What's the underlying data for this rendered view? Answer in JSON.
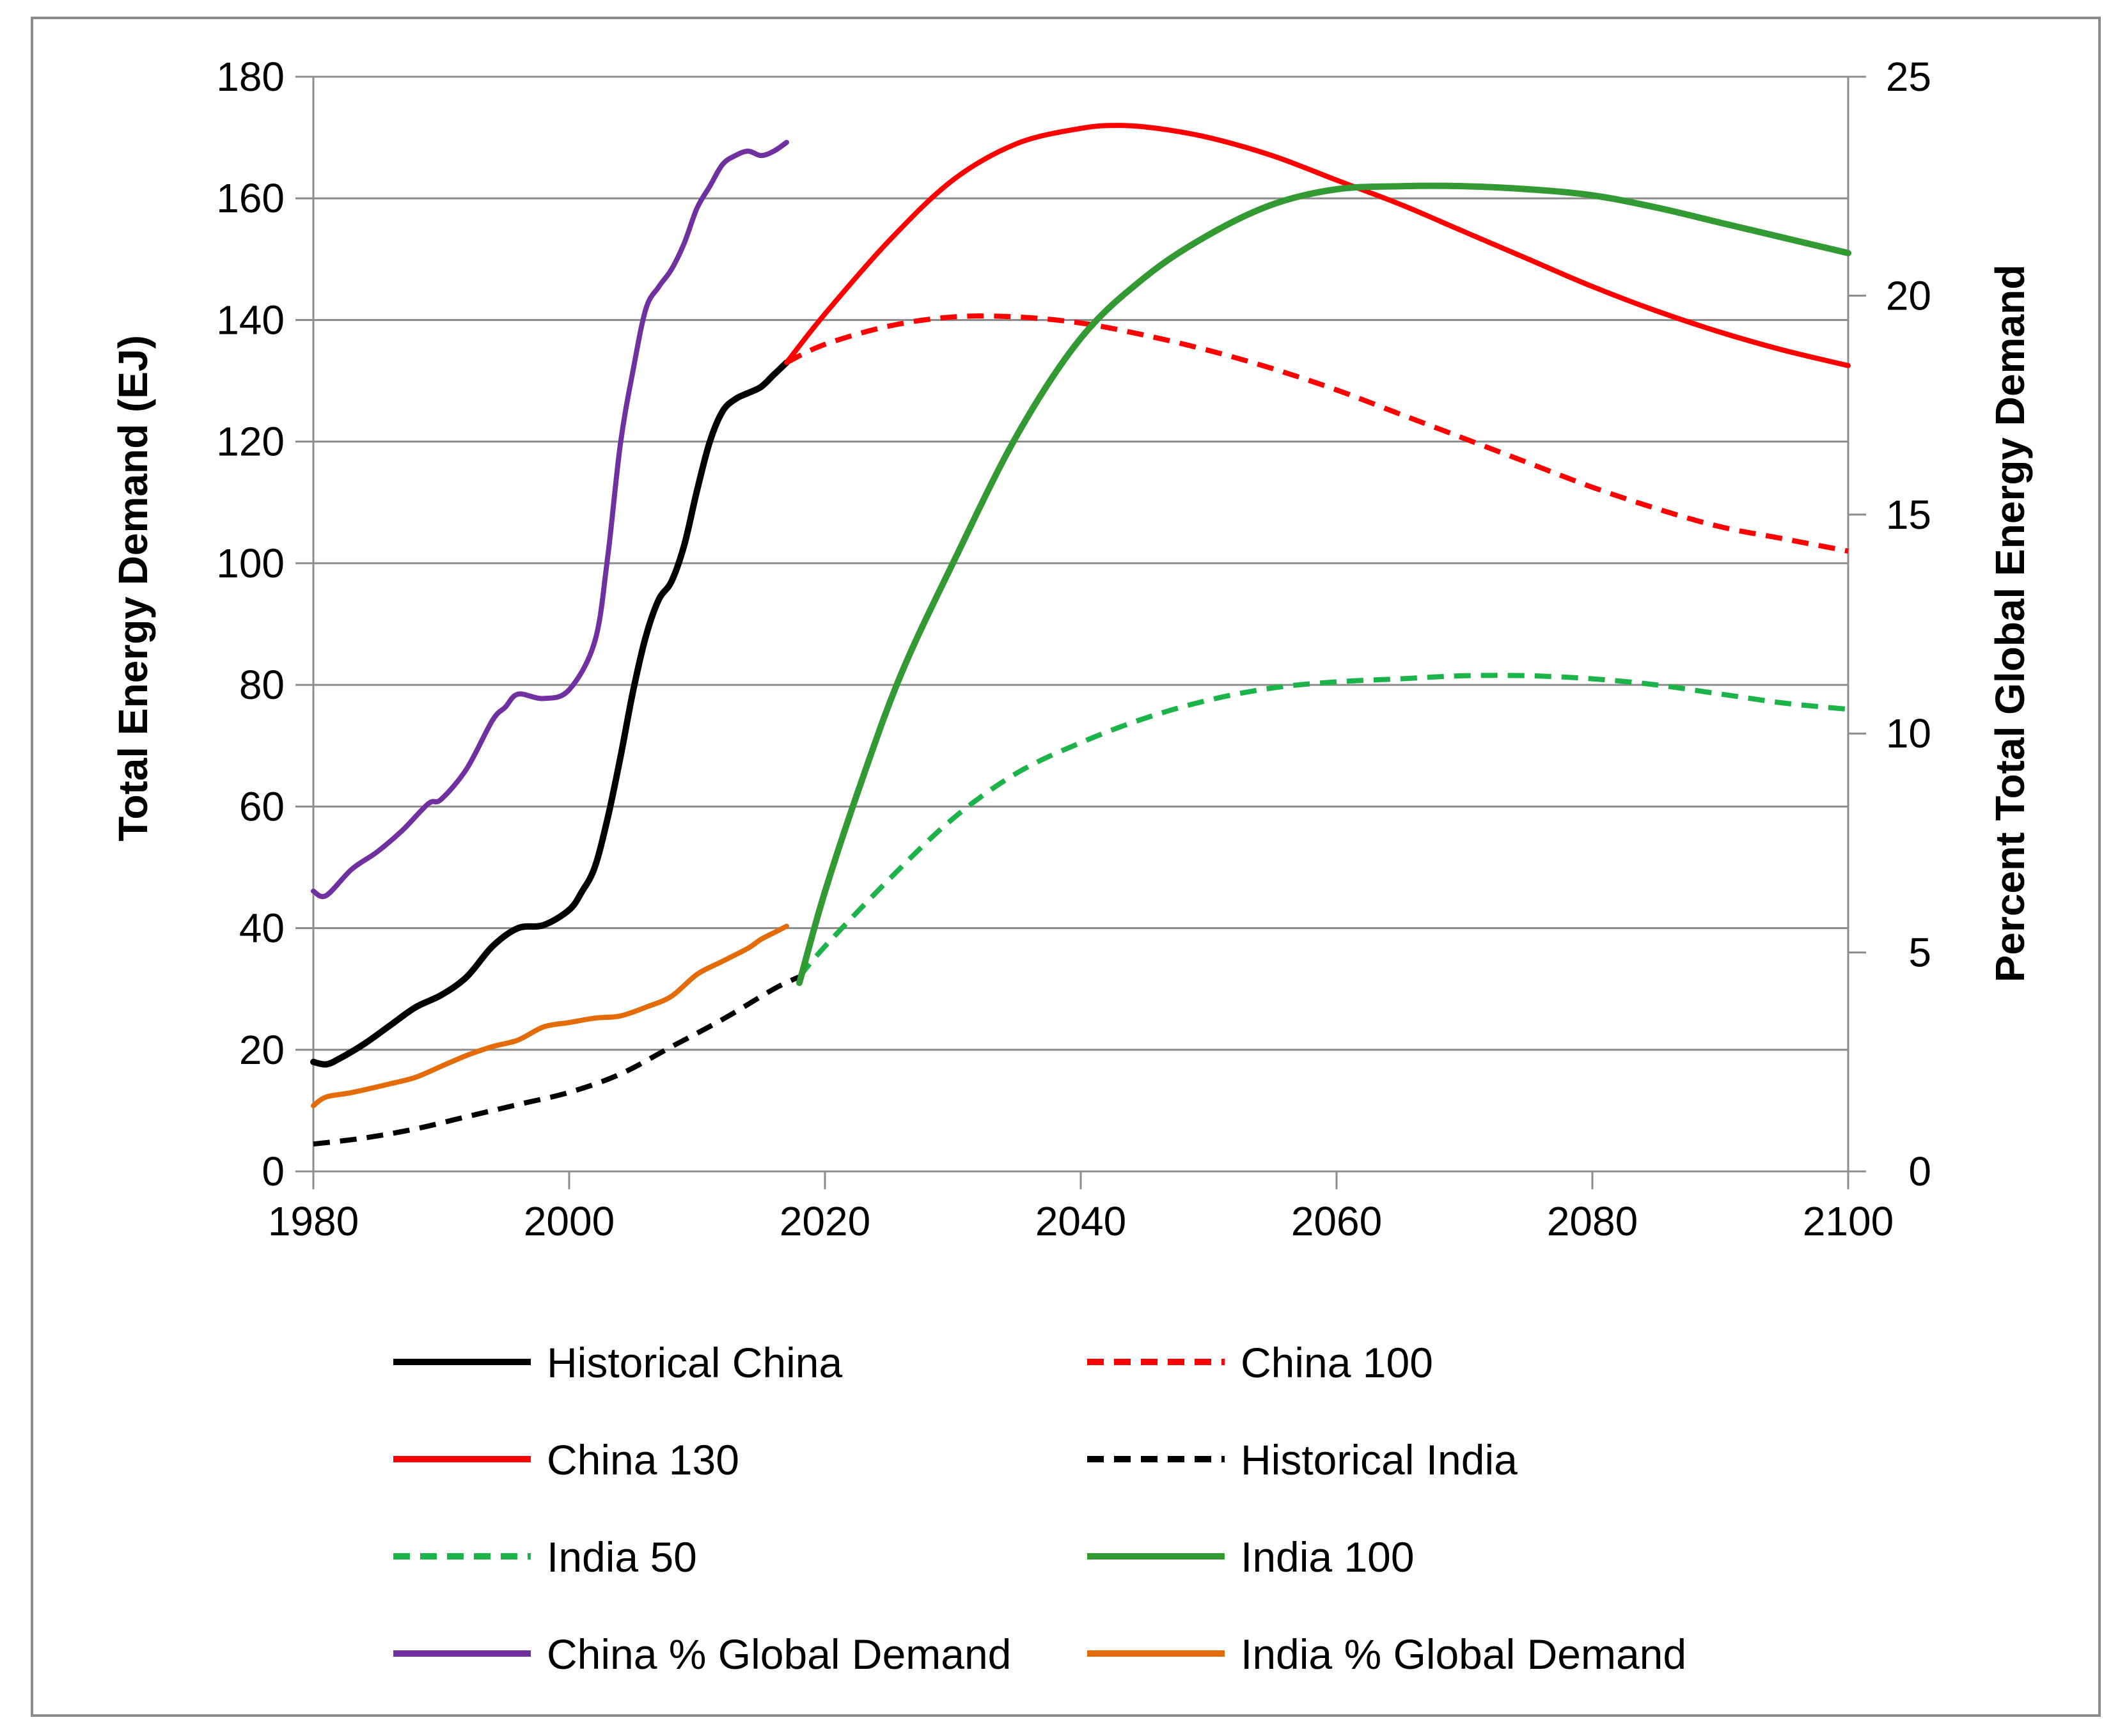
{
  "chart_data": {
    "type": "line",
    "title": "",
    "xlabel": "",
    "ylabel": "Total Energy Demand (EJ)",
    "y2label": "Percent Total Global Energy Demand",
    "xlim": [
      1980,
      2100
    ],
    "ylim": [
      0,
      180
    ],
    "y2lim": [
      0,
      25
    ],
    "x_ticks": [
      1980,
      2000,
      2020,
      2040,
      2060,
      2080,
      2100
    ],
    "y_ticks": [
      0,
      20,
      40,
      60,
      80,
      100,
      120,
      140,
      160,
      180
    ],
    "y2_ticks": [
      0,
      5,
      10,
      15,
      20,
      25
    ],
    "grid": true,
    "legend_position": "bottom",
    "series": [
      {
        "name": "Historical China",
        "axis": "left",
        "color": "#000000",
        "dash": "solid",
        "x": [
          1980,
          1981,
          1982,
          1984,
          1986,
          1988,
          1990,
          1992,
          1994,
          1996,
          1998,
          2000,
          2001,
          2002,
          2003,
          2004,
          2005,
          2006,
          2007,
          2008,
          2009,
          2010,
          2011,
          2012,
          2013,
          2014,
          2015,
          2016,
          2017
        ],
        "y": [
          18,
          17.6,
          18.5,
          21,
          24,
          27,
          29,
          32,
          37,
          40,
          40.5,
          43,
          46,
          50,
          58,
          68,
          79,
          88,
          94,
          97,
          103,
          112,
          120,
          125,
          127,
          128,
          129,
          131,
          133
        ]
      },
      {
        "name": "China 100",
        "axis": "left",
        "color": "#ff0000",
        "dash": "dashed",
        "x": [
          2017,
          2020,
          2025,
          2030,
          2035,
          2040,
          2045,
          2050,
          2055,
          2060,
          2065,
          2070,
          2075,
          2080,
          2085,
          2090,
          2095,
          2100
        ],
        "y": [
          133,
          136,
          139,
          140.5,
          140.5,
          139.5,
          137.5,
          135,
          132,
          128.5,
          124.5,
          120.5,
          116.5,
          112.5,
          109,
          106,
          104,
          102
        ]
      },
      {
        "name": "China 130",
        "axis": "left",
        "color": "#ff0000",
        "dash": "solid",
        "x": [
          2017,
          2020,
          2025,
          2030,
          2035,
          2040,
          2043,
          2046,
          2050,
          2055,
          2060,
          2065,
          2070,
          2075,
          2080,
          2085,
          2090,
          2095,
          2100
        ],
        "y": [
          133,
          141,
          153,
          163,
          169,
          171.5,
          172,
          171.5,
          170,
          167,
          163,
          159,
          154.5,
          150,
          145.5,
          141.5,
          138,
          135,
          132.5
        ]
      },
      {
        "name": "Historical India",
        "axis": "left",
        "color": "#000000",
        "dash": "dashed",
        "x": [
          1980,
          1984,
          1988,
          1992,
          1996,
          2000,
          2004,
          2008,
          2012,
          2016,
          2018
        ],
        "y": [
          4.5,
          5.5,
          7,
          9,
          11,
          13,
          16,
          20.5,
          25,
          30,
          32
        ]
      },
      {
        "name": "India 50",
        "axis": "left",
        "color": "#1cb34a",
        "dash": "dashed",
        "x": [
          2018,
          2020,
          2025,
          2030,
          2035,
          2040,
          2045,
          2050,
          2055,
          2060,
          2065,
          2070,
          2075,
          2080,
          2085,
          2090,
          2095,
          2100
        ],
        "y": [
          32,
          37,
          48,
          58,
          65.5,
          70.5,
          74.5,
          77.5,
          79.5,
          80.5,
          81,
          81.5,
          81.5,
          81,
          80,
          78.5,
          77,
          76
        ]
      },
      {
        "name": "India 100",
        "axis": "left",
        "color": "#339933",
        "dash": "solid",
        "x": [
          2018,
          2020,
          2023,
          2026,
          2030,
          2035,
          2040,
          2045,
          2050,
          2055,
          2060,
          2065,
          2070,
          2075,
          2080,
          2085,
          2090,
          2095,
          2100
        ],
        "y": [
          31,
          46,
          65,
          82,
          100,
          121,
          137,
          147,
          154,
          159,
          161.5,
          162,
          162,
          161.5,
          160.5,
          158.5,
          156,
          153.5,
          151
        ]
      },
      {
        "name": "China % Global Demand",
        "axis": "right",
        "color": "#7030a0",
        "dash": "solid",
        "x": [
          1980,
          1981,
          1983,
          1985,
          1987,
          1989,
          1990,
          1992,
          1994,
          1995,
          1996,
          1998,
          2000,
          2002,
          2003,
          2004,
          2005,
          2006,
          2007,
          2008,
          2009,
          2010,
          2011,
          2012,
          2013,
          2014,
          2015,
          2016,
          2017
        ],
        "y": [
          6.4,
          6.3,
          6.9,
          7.3,
          7.8,
          8.4,
          8.5,
          9.2,
          10.3,
          10.6,
          10.9,
          10.8,
          11,
          12.1,
          14,
          16.6,
          18.3,
          19.7,
          20.2,
          20.6,
          21.2,
          22,
          22.5,
          23,
          23.2,
          23.3,
          23.2,
          23.3,
          23.5
        ]
      },
      {
        "name": "India % Global Demand",
        "axis": "right",
        "color": "#e36c09",
        "dash": "solid",
        "x": [
          1980,
          1981,
          1983,
          1986,
          1988,
          1990,
          1992,
          1994,
          1996,
          1998,
          2000,
          2002,
          2004,
          2006,
          2008,
          2010,
          2012,
          2014,
          2015,
          2016,
          2017
        ],
        "y": [
          1.5,
          1.7,
          1.8,
          2.0,
          2.15,
          2.4,
          2.65,
          2.85,
          3.0,
          3.3,
          3.4,
          3.5,
          3.55,
          3.75,
          4.0,
          4.5,
          4.8,
          5.1,
          5.3,
          5.45,
          5.6
        ]
      }
    ]
  }
}
